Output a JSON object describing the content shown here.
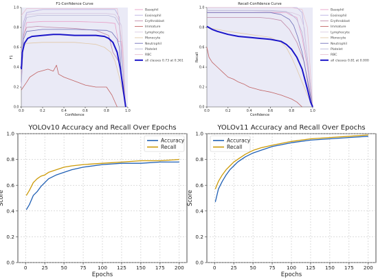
{
  "chart_data": [
    {
      "type": "line",
      "title": "F1-Confidence Curve",
      "xlabel": "Confidence",
      "ylabel": "F1",
      "xlim": [
        0,
        1
      ],
      "ylim": [
        0,
        1
      ],
      "xticks": [
        "0.0",
        "0.2",
        "0.4",
        "0.6",
        "0.8",
        "1.0"
      ],
      "yticks": [
        "0.0",
        "0.2",
        "0.4",
        "0.6",
        "0.8",
        "1.0"
      ],
      "legend_position": "right",
      "colors": {
        "background": "#eaeaf6",
        "all_classes": "#1a14c8"
      },
      "series": [
        {
          "name": "Basophil",
          "color": "#e8a0c8",
          "x": [
            0.0,
            0.02,
            0.05,
            0.2,
            0.5,
            0.8,
            0.88,
            0.91,
            0.94,
            0.96,
            0.98
          ],
          "y": [
            0.2,
            0.7,
            0.85,
            0.86,
            0.86,
            0.85,
            0.84,
            0.66,
            0.66,
            0.2,
            0.0
          ]
        },
        {
          "name": "Eosinophil",
          "color": "#b7aee0",
          "x": [
            0.0,
            0.02,
            0.05,
            0.2,
            0.5,
            0.8,
            0.88,
            0.92,
            0.94,
            0.96,
            0.98
          ],
          "y": [
            0.5,
            0.85,
            0.95,
            0.98,
            0.98,
            0.98,
            0.98,
            0.9,
            0.5,
            0.25,
            0.0
          ]
        },
        {
          "name": "Erythroblast",
          "color": "#c08aa8",
          "x": [
            0.0,
            0.02,
            0.05,
            0.15,
            0.3,
            0.5,
            0.7,
            0.82,
            0.86,
            0.92,
            0.96,
            0.98
          ],
          "y": [
            0.33,
            0.72,
            0.8,
            0.81,
            0.8,
            0.79,
            0.77,
            0.72,
            0.55,
            0.45,
            0.2,
            0.0
          ]
        },
        {
          "name": "Immature",
          "color": "#c06060",
          "x": [
            0.0,
            0.05,
            0.08,
            0.15,
            0.25,
            0.3,
            0.33,
            0.35,
            0.4,
            0.5,
            0.6,
            0.7,
            0.8,
            0.85,
            0.9
          ],
          "y": [
            0.17,
            0.25,
            0.3,
            0.35,
            0.38,
            0.36,
            0.42,
            0.33,
            0.3,
            0.26,
            0.22,
            0.2,
            0.2,
            0.12,
            0.0
          ]
        },
        {
          "name": "Lymphocyte",
          "color": "#d8c8e0",
          "x": [
            0.0,
            0.02,
            0.05,
            0.2,
            0.5,
            0.8,
            0.88,
            0.9,
            0.94,
            0.96,
            0.98
          ],
          "y": [
            0.4,
            0.8,
            0.93,
            0.94,
            0.94,
            0.94,
            0.93,
            0.9,
            0.82,
            0.5,
            0.0
          ]
        },
        {
          "name": "Monocyte",
          "color": "#e0c8a8",
          "x": [
            0.0,
            0.02,
            0.05,
            0.2,
            0.5,
            0.7,
            0.78,
            0.84,
            0.88,
            0.92,
            0.96,
            0.98
          ],
          "y": [
            0.45,
            0.62,
            0.64,
            0.65,
            0.65,
            0.63,
            0.6,
            0.55,
            0.46,
            0.3,
            0.12,
            0.0
          ]
        },
        {
          "name": "Neutrophil",
          "color": "#6e6eb8",
          "x": [
            0.0,
            0.02,
            0.05,
            0.2,
            0.5,
            0.8,
            0.85,
            0.9,
            0.92,
            0.95,
            0.98
          ],
          "y": [
            0.25,
            0.68,
            0.76,
            0.78,
            0.78,
            0.77,
            0.75,
            0.68,
            0.6,
            0.2,
            0.0
          ]
        },
        {
          "name": "Platelet",
          "color": "#b8b8d8",
          "x": [
            0.0,
            0.02,
            0.05,
            0.15,
            0.3,
            0.5,
            0.7,
            0.82,
            0.88,
            0.92,
            0.96,
            0.98
          ],
          "y": [
            0.2,
            0.78,
            0.9,
            0.92,
            0.92,
            0.92,
            0.92,
            0.92,
            0.9,
            0.82,
            0.3,
            0.0
          ]
        },
        {
          "name": "RBC",
          "color": "#e8c0d0",
          "x": [
            0.0,
            0.05,
            0.2,
            0.5,
            0.8,
            0.9,
            0.95,
            0.98
          ],
          "y": [
            0.92,
            0.99,
            0.99,
            0.99,
            0.99,
            0.99,
            0.6,
            0.0
          ]
        },
        {
          "name": "all classes 0.73 at 0.361",
          "color": "#1a14c8",
          "emphasis": true,
          "x": [
            0.0,
            0.01,
            0.03,
            0.06,
            0.1,
            0.2,
            0.3,
            0.361,
            0.5,
            0.6,
            0.7,
            0.78,
            0.82,
            0.86,
            0.9,
            0.93,
            0.96,
            0.98
          ],
          "y": [
            0.38,
            0.55,
            0.64,
            0.69,
            0.71,
            0.72,
            0.73,
            0.73,
            0.72,
            0.72,
            0.72,
            0.71,
            0.69,
            0.65,
            0.55,
            0.38,
            0.15,
            0.0
          ]
        }
      ]
    },
    {
      "type": "line",
      "title": "Recall-Confidence Curve",
      "xlabel": "Confidence",
      "ylabel": "Recall",
      "xlim": [
        0,
        1
      ],
      "ylim": [
        0,
        1
      ],
      "xticks": [
        "0.0",
        "0.2",
        "0.4",
        "0.6",
        "0.8",
        "1.0"
      ],
      "yticks": [
        "0.0",
        "0.2",
        "0.4",
        "0.6",
        "0.8",
        "1.0"
      ],
      "legend_position": "right",
      "colors": {
        "background": "#eaeaf6",
        "all_classes": "#1a14c8"
      },
      "series": [
        {
          "name": "Basophil",
          "color": "#e8a0c8",
          "x": [
            0.0,
            0.2,
            0.4,
            0.6,
            0.75,
            0.8,
            0.85,
            0.9,
            0.95,
            1.0
          ],
          "y": [
            0.95,
            0.95,
            0.95,
            0.95,
            0.95,
            0.92,
            0.9,
            0.7,
            0.4,
            0.0
          ]
        },
        {
          "name": "Eosinophil",
          "color": "#b7aee0",
          "x": [
            0.0,
            0.2,
            0.4,
            0.6,
            0.7,
            0.8,
            0.85,
            0.9,
            0.95,
            1.0
          ],
          "y": [
            1.0,
            1.0,
            1.0,
            1.0,
            1.0,
            1.0,
            1.0,
            0.95,
            0.5,
            0.0
          ]
        },
        {
          "name": "Erythroblast",
          "color": "#c08aa8",
          "x": [
            0.0,
            0.1,
            0.2,
            0.4,
            0.5,
            0.6,
            0.7,
            0.78,
            0.85,
            0.92,
            0.96,
            1.0
          ],
          "y": [
            0.9,
            0.9,
            0.9,
            0.9,
            0.9,
            0.89,
            0.87,
            0.78,
            0.65,
            0.45,
            0.2,
            0.0
          ]
        },
        {
          "name": "Immature",
          "color": "#c06060",
          "x": [
            0.0,
            0.02,
            0.05,
            0.1,
            0.15,
            0.2,
            0.25,
            0.3,
            0.35,
            0.4,
            0.5,
            0.6,
            0.7,
            0.8,
            0.85,
            0.9
          ],
          "y": [
            0.6,
            0.5,
            0.45,
            0.4,
            0.35,
            0.3,
            0.28,
            0.25,
            0.23,
            0.2,
            0.17,
            0.15,
            0.12,
            0.08,
            0.05,
            0.0
          ]
        },
        {
          "name": "Lymphocyte",
          "color": "#d8c8e0",
          "x": [
            0.0,
            0.2,
            0.4,
            0.6,
            0.8,
            0.88,
            0.92,
            0.96,
            1.0
          ],
          "y": [
            0.97,
            0.97,
            0.97,
            0.96,
            0.95,
            0.92,
            0.8,
            0.4,
            0.0
          ]
        },
        {
          "name": "Monocyte",
          "color": "#e0c8a8",
          "x": [
            0.0,
            0.1,
            0.2,
            0.4,
            0.6,
            0.7,
            0.75,
            0.8,
            0.85,
            0.9,
            0.95,
            1.0
          ],
          "y": [
            0.8,
            0.78,
            0.76,
            0.73,
            0.7,
            0.65,
            0.6,
            0.5,
            0.38,
            0.25,
            0.12,
            0.0
          ]
        },
        {
          "name": "Neutrophil",
          "color": "#6e6eb8",
          "x": [
            0.0,
            0.2,
            0.4,
            0.6,
            0.7,
            0.78,
            0.82,
            0.86,
            0.9,
            0.95,
            1.0
          ],
          "y": [
            0.95,
            0.95,
            0.95,
            0.95,
            0.93,
            0.88,
            0.82,
            0.7,
            0.55,
            0.28,
            0.0
          ]
        },
        {
          "name": "Platelet",
          "color": "#b8b8d8",
          "x": [
            0.0,
            0.2,
            0.4,
            0.6,
            0.75,
            0.8,
            0.85,
            0.9,
            0.95,
            1.0
          ],
          "y": [
            0.97,
            0.97,
            0.97,
            0.97,
            0.96,
            0.93,
            0.88,
            0.75,
            0.45,
            0.0
          ]
        },
        {
          "name": "RBC",
          "color": "#e8c0d0",
          "x": [
            0.0,
            0.2,
            0.4,
            0.6,
            0.8,
            0.9,
            0.95,
            1.0
          ],
          "y": [
            1.0,
            1.0,
            1.0,
            1.0,
            1.0,
            0.98,
            0.8,
            0.0
          ]
        },
        {
          "name": "all classes 0.81 at 0.000",
          "color": "#1a14c8",
          "emphasis": true,
          "x": [
            0.0,
            0.05,
            0.1,
            0.2,
            0.3,
            0.4,
            0.5,
            0.6,
            0.7,
            0.75,
            0.8,
            0.85,
            0.9,
            0.95,
            0.98,
            1.0
          ],
          "y": [
            0.81,
            0.78,
            0.76,
            0.73,
            0.71,
            0.7,
            0.69,
            0.68,
            0.66,
            0.63,
            0.58,
            0.5,
            0.38,
            0.18,
            0.05,
            0.0
          ]
        }
      ]
    },
    {
      "type": "line",
      "title": "YOLOv10 Accuracy and Recall Over Epochs",
      "xlabel": "Epochs",
      "ylabel": "Score",
      "xlim": [
        -10,
        210
      ],
      "ylim": [
        0,
        1
      ],
      "xticks": [
        "0",
        "25",
        "50",
        "75",
        "100",
        "125",
        "150",
        "175",
        "200"
      ],
      "yticks": [
        "0.0",
        "0.2",
        "0.4",
        "0.6",
        "0.8",
        "1.0"
      ],
      "grid": true,
      "legend_position": "top-right",
      "series": [
        {
          "name": "Accuracy",
          "color": "#1f5fb4",
          "x": [
            1,
            5,
            10,
            15,
            20,
            25,
            30,
            40,
            50,
            60,
            75,
            100,
            125,
            150,
            175,
            200
          ],
          "y": [
            0.41,
            0.45,
            0.52,
            0.55,
            0.59,
            0.62,
            0.65,
            0.68,
            0.7,
            0.72,
            0.74,
            0.76,
            0.77,
            0.77,
            0.78,
            0.78
          ]
        },
        {
          "name": "Recall",
          "color": "#cc9a06",
          "x": [
            1,
            5,
            10,
            15,
            20,
            25,
            30,
            40,
            50,
            60,
            75,
            100,
            125,
            150,
            175,
            200
          ],
          "y": [
            0.52,
            0.56,
            0.62,
            0.65,
            0.67,
            0.68,
            0.7,
            0.72,
            0.74,
            0.75,
            0.76,
            0.77,
            0.78,
            0.79,
            0.79,
            0.8
          ]
        }
      ]
    },
    {
      "type": "line",
      "title": "YOLOv11 Accuracy and Recall Over Epochs",
      "xlabel": "Epochs",
      "ylabel": "Score",
      "xlim": [
        -10,
        210
      ],
      "ylim": [
        0,
        1
      ],
      "xticks": [
        "0",
        "25",
        "50",
        "75",
        "100",
        "125",
        "150",
        "175",
        "200"
      ],
      "yticks": [
        "0.0",
        "0.2",
        "0.4",
        "0.6",
        "0.8",
        "1.0"
      ],
      "grid": true,
      "legend_position": "top-left",
      "series": [
        {
          "name": "Accuracy",
          "color": "#1f5fb4",
          "x": [
            1,
            5,
            10,
            15,
            20,
            25,
            30,
            40,
            50,
            60,
            75,
            100,
            125,
            150,
            175,
            200
          ],
          "y": [
            0.47,
            0.57,
            0.63,
            0.68,
            0.72,
            0.75,
            0.78,
            0.82,
            0.85,
            0.87,
            0.9,
            0.93,
            0.95,
            0.96,
            0.97,
            0.98
          ]
        },
        {
          "name": "Recall",
          "color": "#cc9a06",
          "x": [
            1,
            5,
            10,
            15,
            20,
            25,
            30,
            40,
            50,
            60,
            75,
            100,
            125,
            150,
            175,
            200
          ],
          "y": [
            0.57,
            0.63,
            0.68,
            0.72,
            0.75,
            0.78,
            0.8,
            0.84,
            0.87,
            0.89,
            0.91,
            0.94,
            0.96,
            0.97,
            0.98,
            0.99
          ]
        }
      ]
    }
  ]
}
